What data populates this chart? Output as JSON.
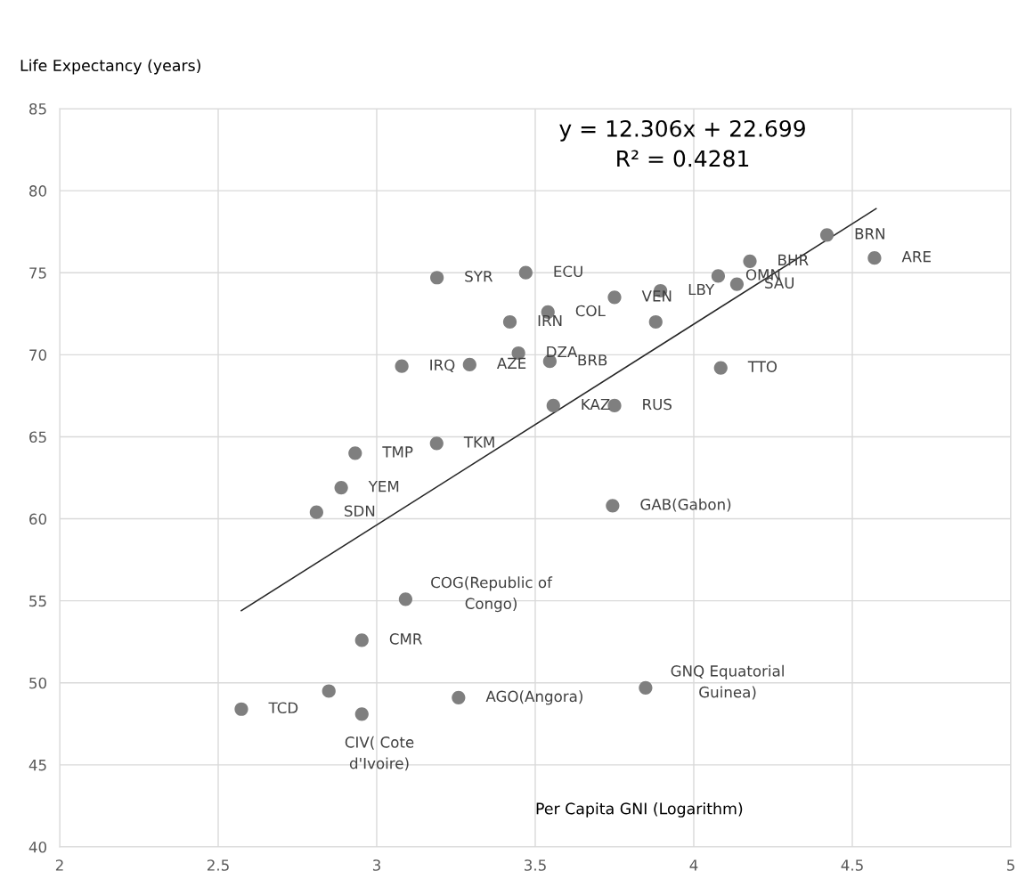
{
  "chart_data": {
    "type": "scatter",
    "xlabel": "Per Capita GNI (Logarithm)",
    "ylabel": "Life Expectancy (years)",
    "xlim": [
      2,
      5
    ],
    "xticks": [
      2,
      2.5,
      3,
      3.5,
      4,
      4.5,
      5
    ],
    "ylim": [
      40,
      85
    ],
    "yticks": [
      40,
      45,
      50,
      55,
      60,
      65,
      70,
      75,
      80,
      85
    ],
    "grid": true,
    "legend": false,
    "series": [
      {
        "marker": "circle",
        "color": "#7f7f7f",
        "x": [
          3.19,
          3.47,
          3.42,
          3.54,
          3.75,
          3.895,
          3.88,
          4.077,
          4.177,
          4.136,
          4.42,
          4.57,
          3.447,
          3.546,
          4.085,
          3.557,
          3.75,
          3.079,
          3.293,
          3.189,
          2.932,
          2.888,
          2.81,
          3.091,
          2.953,
          2.849,
          2.573,
          2.953,
          3.258,
          3.744,
          3.848
        ],
        "values": [
          74.7,
          75.0,
          72.0,
          72.6,
          73.5,
          73.9,
          72.0,
          74.8,
          75.7,
          74.3,
          77.3,
          75.9,
          70.1,
          69.6,
          69.2,
          66.9,
          66.9,
          69.3,
          69.4,
          64.6,
          64.0,
          61.9,
          60.4,
          55.1,
          52.6,
          49.5,
          48.4,
          48.1,
          49.1,
          60.8,
          49.7
        ]
      },
      {
        "type": "line",
        "color": "#262626",
        "line_style": "solid",
        "x": [
          2.573,
          4.575
        ],
        "values": [
          54.4,
          78.9
        ]
      }
    ],
    "annotations": [
      {
        "text": "SYR",
        "x": 3.19,
        "y": 74.7
      },
      {
        "text": "ECU",
        "x": 3.47,
        "y": 75.0
      },
      {
        "text": "IRN",
        "x": 3.42,
        "y": 72.0
      },
      {
        "text": "COL",
        "x": 3.54,
        "y": 72.6
      },
      {
        "text": "VEN",
        "x": 3.75,
        "y": 73.5
      },
      {
        "text": "LBY",
        "x": 3.895,
        "y": 73.9
      },
      {
        "text": "OMN",
        "x": 4.077,
        "y": 74.8
      },
      {
        "text": "BHR",
        "x": 4.177,
        "y": 75.7
      },
      {
        "text": "SAU",
        "x": 4.136,
        "y": 74.3
      },
      {
        "text": "BRN",
        "x": 4.42,
        "y": 77.3
      },
      {
        "text": "ARE",
        "x": 4.57,
        "y": 75.9
      },
      {
        "text": "DZA",
        "x": 3.447,
        "y": 70.1
      },
      {
        "text": "BRB",
        "x": 3.546,
        "y": 69.6
      },
      {
        "text": "TTO",
        "x": 4.085,
        "y": 69.2
      },
      {
        "text": "KAZ",
        "x": 3.557,
        "y": 66.9
      },
      {
        "text": "RUS",
        "x": 3.75,
        "y": 66.9
      },
      {
        "text": "IRQ",
        "x": 3.079,
        "y": 69.3
      },
      {
        "text": "AZE",
        "x": 3.293,
        "y": 69.4
      },
      {
        "text": "TKM",
        "x": 3.189,
        "y": 64.6
      },
      {
        "text": "TMP",
        "x": 2.932,
        "y": 64.0
      },
      {
        "text": "YEM",
        "x": 2.888,
        "y": 61.9
      },
      {
        "text": "SDN",
        "x": 2.81,
        "y": 60.4
      },
      {
        "text": "COG(Republic of\nCongo)",
        "x": 3.091,
        "y": 55.1
      },
      {
        "text": "CMR",
        "x": 2.953,
        "y": 52.6
      },
      {
        "text": "TCD",
        "x": 2.573,
        "y": 48.4
      },
      {
        "text": "CIV( Cote\nd'Ivoire)",
        "x": 2.953,
        "y": 48.1
      },
      {
        "text": "AGO(Angora)",
        "x": 3.258,
        "y": 49.1
      },
      {
        "text": "GAB(Gabon)",
        "x": 3.744,
        "y": 60.8
      },
      {
        "text": "GNQ Equatorial\nGuinea)",
        "x": 3.848,
        "y": 49.7
      },
      "y = 12.306x + 22.699\nR² = 0.4281"
    ]
  }
}
